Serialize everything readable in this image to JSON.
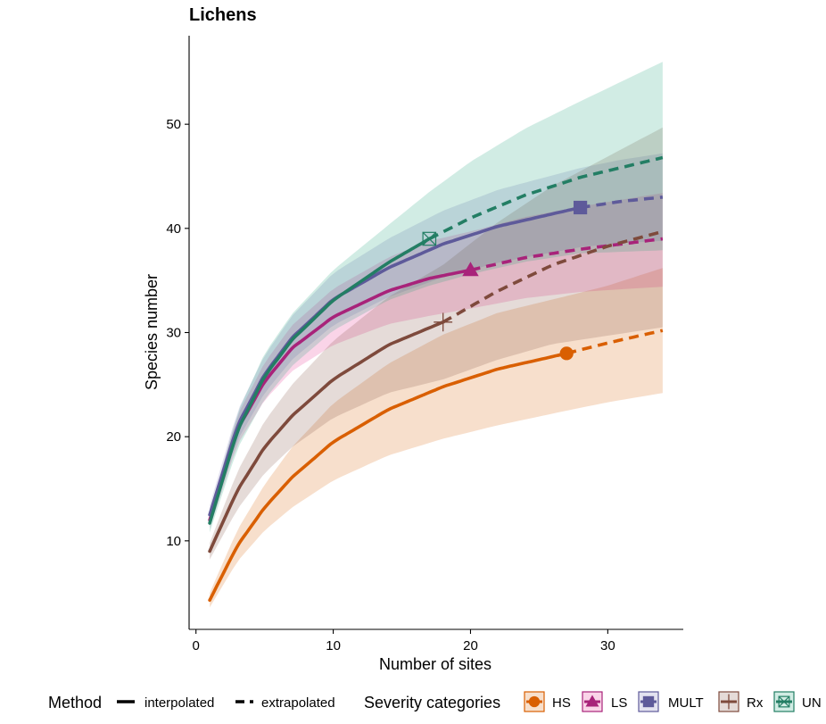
{
  "chart_data": {
    "type": "line",
    "title": "Lichens",
    "xlabel": "Number of sites",
    "ylabel": "Species number",
    "xlim": [
      -0.5,
      35.5
    ],
    "ylim": [
      1.5,
      58.5
    ],
    "x_ticks": [
      0,
      10,
      20,
      30
    ],
    "y_ticks": [
      10,
      20,
      30,
      40,
      50
    ],
    "grid": false,
    "legend_position": "bottom",
    "legend": {
      "method_title": "Method",
      "method_items": [
        "interpolated",
        "extrapolated"
      ],
      "group_title": "Severity categories"
    },
    "series": [
      {
        "name": "HS",
        "color": "#D95F02",
        "marker": "circle",
        "observed_x": 27,
        "x": [
          1,
          3,
          5,
          7,
          10,
          14,
          18,
          22,
          27,
          30,
          34
        ],
        "y": [
          4.3,
          9.5,
          13.2,
          16.1,
          19.5,
          22.6,
          24.8,
          26.5,
          28.0,
          29.0,
          30.2
        ],
        "lower": [
          3.6,
          8.0,
          11.0,
          13.2,
          15.8,
          18.2,
          19.8,
          21.1,
          22.5,
          23.3,
          24.2
        ],
        "upper": [
          5.0,
          11.0,
          15.4,
          19.0,
          23.2,
          27.0,
          29.8,
          31.9,
          33.5,
          34.5,
          36.2
        ]
      },
      {
        "name": "LS",
        "color": "#E7298A",
        "line_color": "#A8237A",
        "marker": "triangle",
        "observed_x": 20,
        "x": [
          1,
          3,
          5,
          7,
          10,
          14,
          17,
          20,
          24,
          28,
          34
        ],
        "y": [
          12.0,
          20.6,
          25.3,
          28.5,
          31.5,
          34.0,
          35.2,
          36.0,
          37.2,
          38.0,
          39.0
        ],
        "lower": [
          11.2,
          19.2,
          23.5,
          26.3,
          28.8,
          30.8,
          31.6,
          32.3,
          33.3,
          33.9,
          34.4
        ],
        "upper": [
          12.8,
          22.0,
          27.1,
          30.7,
          34.2,
          37.2,
          38.8,
          39.7,
          41.1,
          42.1,
          43.4
        ]
      },
      {
        "name": "MULT",
        "color": "#7570B3",
        "line_color": "#5E5A9A",
        "marker": "square",
        "observed_x": 28,
        "x": [
          1,
          3,
          5,
          7,
          10,
          14,
          18,
          22,
          28,
          31,
          34
        ],
        "y": [
          12.5,
          21.0,
          26.0,
          29.5,
          33.2,
          36.2,
          38.5,
          40.2,
          42.0,
          42.6,
          43.0
        ],
        "lower": [
          11.6,
          19.6,
          24.2,
          27.4,
          30.7,
          33.4,
          35.3,
          36.7,
          38.2,
          38.6,
          38.8
        ],
        "upper": [
          13.4,
          22.4,
          27.8,
          31.6,
          35.7,
          39.0,
          41.7,
          43.7,
          45.8,
          46.6,
          47.2
        ]
      },
      {
        "name": "Rx",
        "color": "#7E4A3C",
        "marker": "cross",
        "observed_x": 18,
        "x": [
          1,
          3,
          5,
          7,
          10,
          14,
          18,
          22,
          26,
          30,
          34
        ],
        "y": [
          9.0,
          14.8,
          19.0,
          22.0,
          25.5,
          28.8,
          31.0,
          34.0,
          36.5,
          38.3,
          39.7
        ],
        "lower": [
          8.2,
          13.0,
          16.5,
          19.0,
          21.8,
          24.2,
          25.5,
          27.4,
          28.9,
          29.7,
          30.5
        ],
        "upper": [
          9.8,
          16.6,
          21.5,
          25.0,
          29.2,
          33.4,
          36.5,
          40.6,
          44.1,
          46.9,
          49.7
        ]
      },
      {
        "name": "UN",
        "color": "#1B9E77",
        "line_color": "#237E64",
        "marker": "boxcross",
        "observed_x": 17,
        "x": [
          1,
          3,
          5,
          7,
          10,
          14,
          17,
          20,
          24,
          28,
          34
        ],
        "y": [
          11.7,
          20.5,
          25.8,
          29.3,
          33.1,
          36.7,
          39.0,
          41.0,
          43.2,
          44.9,
          46.8
        ],
        "lower": [
          10.8,
          18.8,
          23.6,
          26.8,
          30.2,
          33.1,
          34.5,
          35.6,
          36.8,
          37.6,
          37.9
        ],
        "upper": [
          12.6,
          22.2,
          28.0,
          31.8,
          36.0,
          40.3,
          43.5,
          46.4,
          49.6,
          52.2,
          56.0
        ]
      }
    ]
  }
}
